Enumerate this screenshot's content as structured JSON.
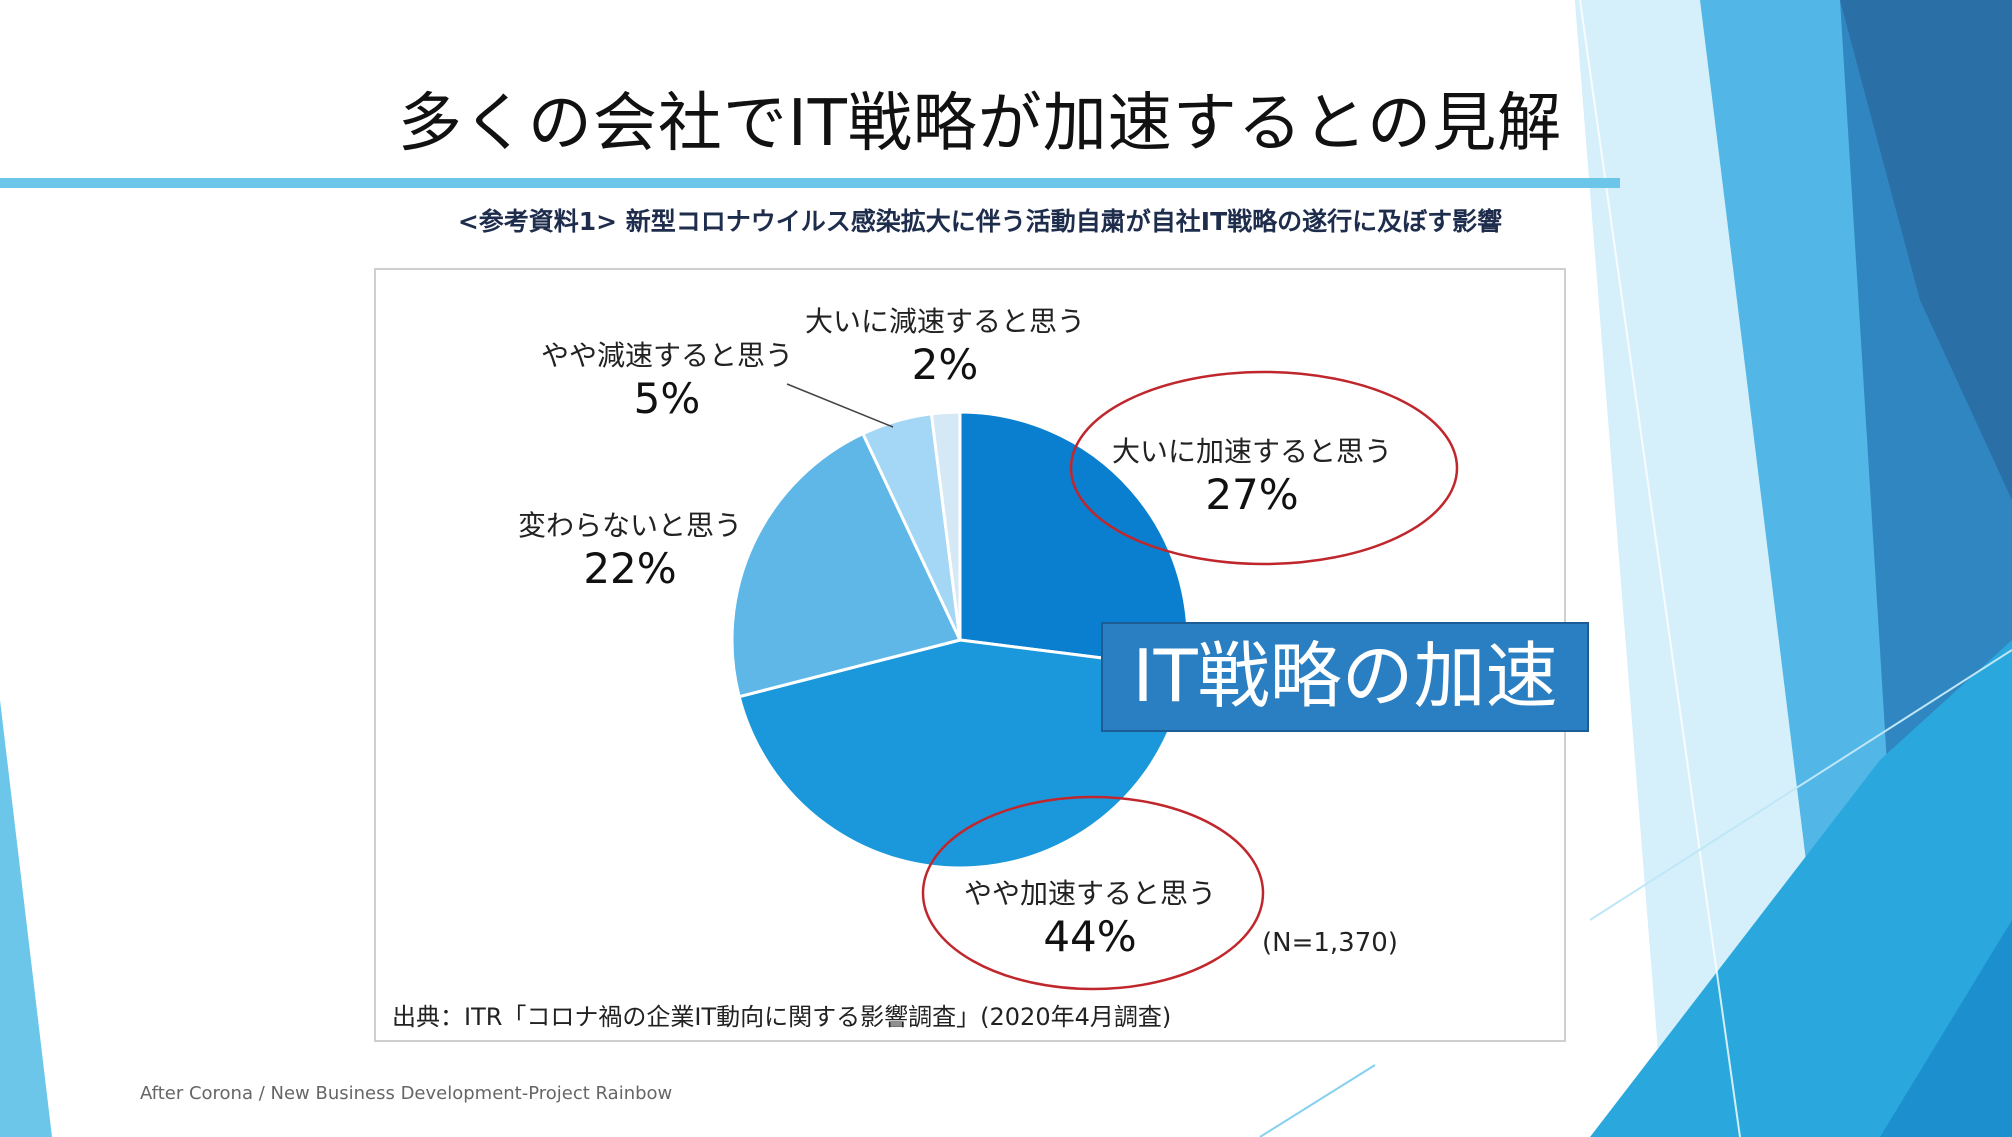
{
  "slide": {
    "title": "多くの会社でIT戦略が加速するとの見解",
    "footer": "After Corona / New Business Development-Project Rainbow",
    "callout": "IT戦略の加速",
    "colors": {
      "accent_rule": "#6cc6ea",
      "callout_fill": "#2a7fc3",
      "highlight_ellipse": "#c0272d"
    }
  },
  "figure": {
    "caption": "<参考資料1> 新型コロナウイルス感染拡大に伴う活動自粛が自社IT戦略の遂行に及ぼす影響",
    "sample_size": "(N=1,370)",
    "source": "出典：ITR「コロナ禍の企業IT動向に関する影響調査」(2020年4月調査)"
  },
  "chart_data": {
    "type": "pie",
    "categories": [
      "大いに加速すると思う",
      "やや加速すると思う",
      "変わらないと思う",
      "やや減速すると思う",
      "大いに減速すると思う"
    ],
    "values": [
      27,
      44,
      22,
      5,
      2
    ],
    "value_labels": [
      "27%",
      "44%",
      "22%",
      "5%",
      "2%"
    ],
    "colors": [
      "#0a7fcf",
      "#1a98db",
      "#5fb7e8",
      "#a3d7f5",
      "#d5e8f6"
    ],
    "highlighted": [
      "大いに加速すると思う",
      "やや加速すると思う"
    ]
  }
}
